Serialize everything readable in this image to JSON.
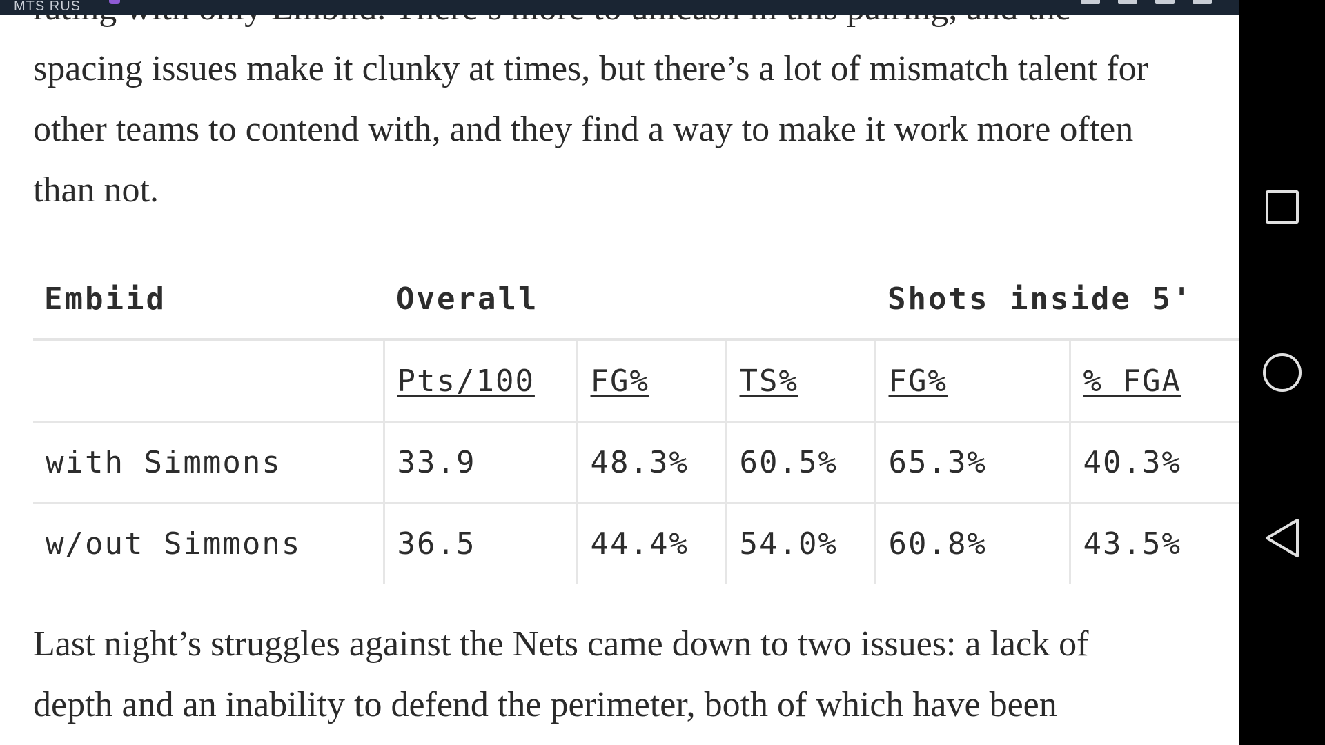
{
  "status_bar": {
    "carrier": "MTS RUS"
  },
  "article": {
    "para_top_lines": [
      "rating with only Embiid. There’s more to unleash in this pairing, and the",
      "spacing issues make it clunky at times, but there’s a lot of mismatch talent for",
      "other teams to contend with, and they find a way to make it work more often",
      "than not."
    ],
    "para_bottom_lines": [
      "Last night’s struggles against the Nets came down to two issues: a lack of",
      "depth and an inability to defend the perimeter, both of which have been"
    ]
  },
  "table": {
    "groups": {
      "player": "Embiid",
      "overall": "Overall",
      "shots": "Shots inside 5'"
    },
    "subheaders": [
      "Pts/100",
      "FG%",
      "TS%",
      "FG%",
      "% FGA"
    ],
    "rows": [
      {
        "label": "with Simmons",
        "cells": [
          "33.9",
          "48.3%",
          "60.5%",
          "65.3%",
          "40.3%"
        ]
      },
      {
        "label": "w/out Simmons",
        "cells": [
          "36.5",
          "44.4%",
          "54.0%",
          "60.8%",
          "43.5%"
        ]
      }
    ]
  },
  "nav": {
    "icons": [
      "recents-square-icon",
      "home-circle-icon",
      "back-triangle-icon"
    ]
  }
}
